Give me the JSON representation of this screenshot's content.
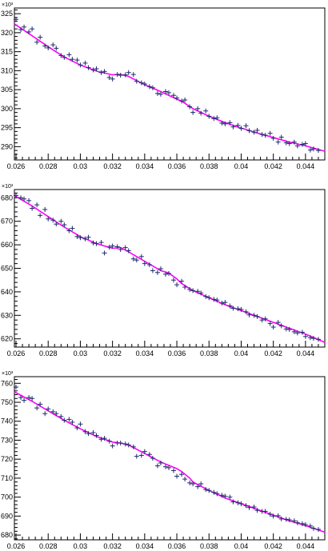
{
  "chart_data": [
    {
      "type": "scatter",
      "title": "",
      "xlabel": "",
      "ylabel": "",
      "y_exponent_label": "×10³",
      "xlim": [
        0.0259,
        0.0452
      ],
      "ylim": [
        286.5,
        326.5
      ],
      "x_ticks": [
        0.026,
        0.028,
        0.03,
        0.032,
        0.034,
        0.036,
        0.038,
        0.04,
        0.042,
        0.044
      ],
      "x_tick_labels": [
        "0.026",
        "0.028",
        "0.03",
        "0.032",
        "0.034",
        "0.036",
        "0.038",
        "0.04",
        "0.042",
        "0.044"
      ],
      "y_ticks": [
        290,
        295,
        300,
        305,
        310,
        315,
        320,
        325
      ],
      "y_tick_labels": [
        "290",
        "295",
        "300",
        "305",
        "310",
        "315",
        "320",
        "325"
      ],
      "marker": "cross",
      "marker_color": "#1c2a6b",
      "fit_color": "#ff00ff",
      "series": [
        {
          "kind": "points",
          "x": [
            0.026,
            0.0263,
            0.0265,
            0.0268,
            0.027,
            0.0273,
            0.0275,
            0.0278,
            0.028,
            0.0283,
            0.0285,
            0.0288,
            0.029,
            0.0293,
            0.0295,
            0.0298,
            0.03,
            0.0303,
            0.0305,
            0.0308,
            0.031,
            0.0313,
            0.0315,
            0.0318,
            0.032,
            0.0323,
            0.0325,
            0.0328,
            0.033,
            0.0333,
            0.0335,
            0.0338,
            0.034,
            0.0343,
            0.0345,
            0.0348,
            0.035,
            0.0353,
            0.0355,
            0.0358,
            0.036,
            0.0363,
            0.0365,
            0.0368,
            0.037,
            0.0373,
            0.0375,
            0.0378,
            0.038,
            0.0383,
            0.0385,
            0.0388,
            0.039,
            0.0393,
            0.0395,
            0.0398,
            0.04,
            0.0403,
            0.0405,
            0.0408,
            0.041,
            0.0413,
            0.0415,
            0.0418,
            0.042,
            0.0423,
            0.0425,
            0.0428,
            0.043,
            0.0433,
            0.0435,
            0.0438,
            0.044,
            0.0443,
            0.0445,
            0.0448
          ],
          "y": [
            323.5,
            320.8,
            321.5,
            320.2,
            321.0,
            317.5,
            318.8,
            316.5,
            316.0,
            316.8,
            315.9,
            314.0,
            313.5,
            314.2,
            313.0,
            312.8,
            311.5,
            312.0,
            310.8,
            310.2,
            310.5,
            309.5,
            309.8,
            308.2,
            307.8,
            309.0,
            308.8,
            308.9,
            309.5,
            309.0,
            307.2,
            306.8,
            306.5,
            305.8,
            305.5,
            304.0,
            303.8,
            304.5,
            304.2,
            303.5,
            302.8,
            302.0,
            302.3,
            300.5,
            299.0,
            300.0,
            298.8,
            299.4,
            298.0,
            297.4,
            297.6,
            296.2,
            296.0,
            296.3,
            295.2,
            295.6,
            294.8,
            295.5,
            294.2,
            293.8,
            294.3,
            293.2,
            293.0,
            293.5,
            292.2,
            291.2,
            292.5,
            291.0,
            290.8,
            291.2,
            290.2,
            290.6,
            290.8,
            289.1,
            289.4,
            289.0
          ]
        },
        {
          "kind": "fit",
          "x": [
            0.0259,
            0.027,
            0.028,
            0.029,
            0.03,
            0.031,
            0.032,
            0.0325,
            0.033,
            0.034,
            0.035,
            0.036,
            0.0363,
            0.037,
            0.038,
            0.039,
            0.04,
            0.041,
            0.042,
            0.043,
            0.044,
            0.0452
          ],
          "y": [
            322.3,
            319.2,
            316.3,
            313.6,
            311.5,
            309.9,
            308.9,
            309.0,
            308.5,
            306.3,
            304.5,
            302.5,
            302.0,
            300.0,
            298.0,
            296.3,
            294.9,
            293.6,
            292.4,
            291.2,
            290.2,
            288.8
          ]
        }
      ]
    },
    {
      "type": "scatter",
      "title": "",
      "xlabel": "",
      "ylabel": "",
      "y_exponent_label": "×10³",
      "xlim": [
        0.0259,
        0.0452
      ],
      "ylim": [
        616.5,
        683.5
      ],
      "x_ticks": [
        0.026,
        0.028,
        0.03,
        0.032,
        0.034,
        0.036,
        0.038,
        0.04,
        0.042,
        0.044
      ],
      "x_tick_labels": [
        "0.026",
        "0.028",
        "0.03",
        "0.032",
        "0.034",
        "0.036",
        "0.038",
        "0.04",
        "0.042",
        "0.044"
      ],
      "y_ticks": [
        620,
        630,
        640,
        650,
        660,
        670,
        680
      ],
      "y_tick_labels": [
        "620",
        "630",
        "640",
        "650",
        "660",
        "670",
        "680"
      ],
      "marker": "cross",
      "marker_color": "#1c2a6b",
      "fit_color": "#ff00ff",
      "series": [
        {
          "kind": "points",
          "x": [
            0.026,
            0.0263,
            0.0265,
            0.0268,
            0.027,
            0.0273,
            0.0275,
            0.0278,
            0.028,
            0.0283,
            0.0285,
            0.0288,
            0.029,
            0.0293,
            0.0295,
            0.0298,
            0.03,
            0.0303,
            0.0305,
            0.0308,
            0.031,
            0.0313,
            0.0315,
            0.0318,
            0.032,
            0.0323,
            0.0325,
            0.0328,
            0.033,
            0.0333,
            0.0335,
            0.0338,
            0.034,
            0.0343,
            0.0345,
            0.0348,
            0.035,
            0.0353,
            0.0355,
            0.0358,
            0.036,
            0.0363,
            0.0365,
            0.0368,
            0.037,
            0.0373,
            0.0375,
            0.0378,
            0.038,
            0.0383,
            0.0385,
            0.0388,
            0.039,
            0.0393,
            0.0395,
            0.0398,
            0.04,
            0.0403,
            0.0405,
            0.0408,
            0.041,
            0.0413,
            0.0415,
            0.0418,
            0.042,
            0.0423,
            0.0425,
            0.0428,
            0.043,
            0.0433,
            0.0435,
            0.0438,
            0.044,
            0.0443,
            0.0445,
            0.0448
          ],
          "y": [
            681.0,
            680.0,
            679.5,
            678.8,
            675.5,
            677.0,
            672.5,
            675.0,
            671.0,
            670.5,
            668.8,
            670.0,
            668.5,
            666.0,
            667.0,
            663.5,
            663.0,
            662.5,
            663.2,
            660.8,
            660.5,
            661.0,
            656.5,
            659.0,
            659.5,
            659.2,
            658.0,
            658.8,
            657.5,
            654.0,
            653.5,
            655.0,
            652.0,
            651.5,
            649.0,
            648.2,
            649.8,
            647.5,
            647.8,
            645.0,
            643.0,
            644.5,
            642.0,
            641.0,
            640.5,
            640.2,
            639.5,
            638.0,
            637.5,
            636.8,
            636.5,
            635.2,
            635.5,
            634.0,
            633.0,
            632.8,
            632.5,
            631.5,
            630.2,
            630.0,
            629.5,
            628.0,
            628.5,
            626.5,
            625.0,
            627.0,
            625.5,
            624.2,
            624.0,
            623.0,
            622.5,
            622.8,
            621.0,
            620.5,
            620.2,
            619.8
          ]
        },
        {
          "kind": "fit",
          "x": [
            0.0259,
            0.027,
            0.028,
            0.029,
            0.03,
            0.031,
            0.032,
            0.0325,
            0.033,
            0.034,
            0.035,
            0.0355,
            0.036,
            0.0363,
            0.037,
            0.038,
            0.039,
            0.04,
            0.041,
            0.042,
            0.043,
            0.044,
            0.0452
          ],
          "y": [
            681.0,
            676.5,
            672.0,
            667.5,
            663.5,
            660.5,
            658.5,
            658.8,
            657.0,
            653.0,
            649.0,
            648.0,
            645.5,
            643.5,
            640.5,
            637.5,
            634.5,
            632.0,
            629.5,
            627.0,
            624.5,
            622.0,
            618.5
          ]
        }
      ]
    },
    {
      "type": "scatter",
      "title": "",
      "xlabel": "",
      "ylabel": "",
      "y_exponent_label": "×10³",
      "xlim": [
        0.0259,
        0.0452
      ],
      "ylim": [
        677.5,
        763.5
      ],
      "x_ticks": [
        0.026,
        0.028,
        0.03,
        0.032,
        0.034,
        0.036,
        0.038,
        0.04,
        0.042,
        0.044
      ],
      "x_tick_labels": [
        "0.026",
        "0.028",
        "0.03",
        "0.032",
        "0.034",
        "0.036",
        "0.038",
        "0.04",
        "0.042",
        "0.044"
      ],
      "y_ticks": [
        680,
        690,
        700,
        710,
        720,
        730,
        740,
        750,
        760
      ],
      "y_tick_labels": [
        "680",
        "690",
        "700",
        "710",
        "720",
        "730",
        "740",
        "750",
        "760"
      ],
      "marker": "cross",
      "marker_color": "#1c2a6b",
      "fit_color": "#ff00ff",
      "series": [
        {
          "kind": "points",
          "x": [
            0.026,
            0.0263,
            0.0265,
            0.0268,
            0.027,
            0.0273,
            0.0275,
            0.0278,
            0.028,
            0.0283,
            0.0285,
            0.0288,
            0.029,
            0.0293,
            0.0295,
            0.0298,
            0.03,
            0.0303,
            0.0305,
            0.0308,
            0.031,
            0.0313,
            0.0315,
            0.0318,
            0.032,
            0.0323,
            0.0325,
            0.0328,
            0.033,
            0.0333,
            0.0335,
            0.0338,
            0.034,
            0.0343,
            0.0345,
            0.0348,
            0.035,
            0.0353,
            0.0355,
            0.0358,
            0.036,
            0.0363,
            0.0365,
            0.0368,
            0.037,
            0.0373,
            0.0375,
            0.0378,
            0.038,
            0.0383,
            0.0385,
            0.0388,
            0.039,
            0.0393,
            0.0395,
            0.0398,
            0.04,
            0.0403,
            0.0405,
            0.0408,
            0.041,
            0.0413,
            0.0415,
            0.0418,
            0.042,
            0.0423,
            0.0425,
            0.0428,
            0.043,
            0.0433,
            0.0435,
            0.0438,
            0.044,
            0.0443,
            0.0445,
            0.0448
          ],
          "y": [
            758.0,
            752.5,
            751.0,
            752.5,
            752.0,
            747.0,
            749.0,
            744.0,
            746.5,
            745.0,
            744.0,
            742.5,
            740.5,
            741.0,
            739.5,
            736.5,
            738.5,
            734.5,
            733.5,
            734.0,
            732.5,
            730.5,
            731.0,
            729.5,
            727.0,
            728.5,
            728.5,
            728.0,
            727.5,
            726.5,
            721.5,
            722.0,
            724.0,
            722.5,
            720.5,
            716.5,
            718.0,
            716.0,
            715.5,
            714.0,
            711.0,
            712.0,
            709.5,
            707.5,
            707.0,
            705.5,
            707.0,
            704.0,
            703.5,
            702.5,
            701.8,
            701.0,
            700.5,
            700.0,
            697.5,
            697.0,
            696.5,
            695.5,
            694.5,
            694.8,
            693.0,
            692.5,
            692.5,
            691.0,
            690.0,
            690.2,
            688.5,
            688.3,
            688.0,
            687.5,
            686.5,
            686.0,
            685.5,
            684.8,
            683.5,
            683.0
          ]
        },
        {
          "kind": "fit",
          "x": [
            0.0259,
            0.027,
            0.028,
            0.029,
            0.03,
            0.031,
            0.032,
            0.0325,
            0.033,
            0.034,
            0.035,
            0.036,
            0.0363,
            0.0368,
            0.037,
            0.038,
            0.039,
            0.04,
            0.041,
            0.042,
            0.043,
            0.044,
            0.0452
          ],
          "y": [
            755.5,
            750.5,
            745.5,
            740.5,
            736.0,
            732.0,
            729.0,
            728.5,
            727.5,
            723.0,
            718.5,
            715.0,
            713.5,
            710.0,
            708.0,
            703.5,
            699.5,
            696.5,
            693.5,
            690.5,
            687.5,
            685.0,
            681.5
          ]
        }
      ]
    }
  ]
}
